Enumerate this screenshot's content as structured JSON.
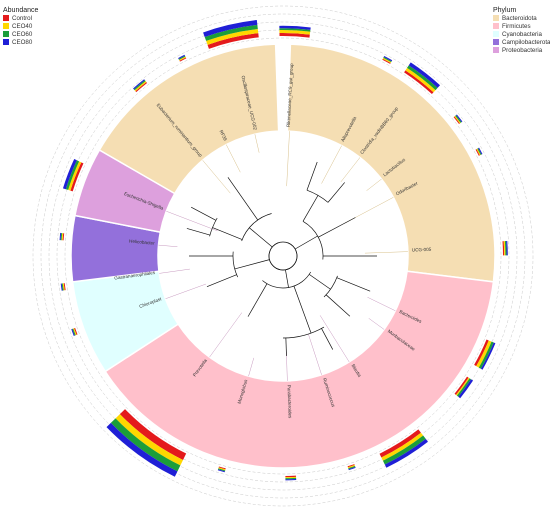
{
  "chart_data": {
    "type": "circular-phylogenetic-tree",
    "abundance_legend": {
      "title": "Abundance",
      "items": [
        {
          "label": "Control",
          "color": "#e41a1c"
        },
        {
          "label": "CEO40",
          "color": "#ffd700"
        },
        {
          "label": "CEO60",
          "color": "#1b9e3a"
        },
        {
          "label": "CEO80",
          "color": "#1f1fd6"
        }
      ]
    },
    "phylum_legend": {
      "title": "Phylum",
      "items": [
        {
          "label": "Bacteroidota",
          "color": "#f5deb3"
        },
        {
          "label": "Firmicutes",
          "color": "#ffc0cb"
        },
        {
          "label": "Cyanobacteria",
          "color": "#e0ffff"
        },
        {
          "label": "Campilobacterota",
          "color": "#9370db"
        },
        {
          "label": "Proteobacteria",
          "color": "#dda0dd"
        }
      ]
    },
    "leaves": [
      {
        "label": "Rikenellaceae_RC9_gut_group",
        "phylum": "Bacteroidota",
        "abundance": [
          0.05,
          0.05,
          0.03,
          0.04
        ]
      },
      {
        "label": "Alloprevotella",
        "phylum": "Bacteroidota",
        "abundance": [
          0.01,
          0.01,
          0.01,
          0.02
        ]
      },
      {
        "label": "Clostridia_vadinBB60_group",
        "phylum": "Bacteroidota",
        "abundance": [
          0.04,
          0.05,
          0.05,
          0.06
        ]
      },
      {
        "label": "Lactobacillus",
        "phylum": "Bacteroidota",
        "abundance": [
          0.01,
          0.01,
          0.02,
          0.01
        ]
      },
      {
        "label": "Odoribacter",
        "phylum": "Bacteroidota",
        "abundance": [
          0.01,
          0.01,
          0.01,
          0.01
        ]
      },
      {
        "label": "UCG-005",
        "phylum": "Bacteroidota",
        "abundance": [
          0.02,
          0.02,
          0.02,
          0.02
        ]
      },
      {
        "label": "Bacteroides",
        "phylum": "Firmicutes",
        "abundance": [
          0.04,
          0.05,
          0.04,
          0.03
        ]
      },
      {
        "label": "Muribaculaceae",
        "phylum": "Firmicutes",
        "abundance": [
          0.03,
          0.02,
          0.03,
          0.04
        ]
      },
      {
        "label": "Blautia",
        "phylum": "Firmicutes",
        "abundance": [
          0.07,
          0.06,
          0.07,
          0.06
        ]
      },
      {
        "label": "Ruminococcus",
        "phylum": "Firmicutes",
        "abundance": [
          0.01,
          0.01,
          0.01,
          0.01
        ]
      },
      {
        "label": "Parabacteroides",
        "phylum": "Firmicutes",
        "abundance": [
          0.02,
          0.01,
          0.02,
          0.01
        ]
      },
      {
        "label": "Monoglobus",
        "phylum": "Firmicutes",
        "abundance": [
          0.01,
          0.01,
          0.01,
          0.01
        ]
      },
      {
        "label": "Prevotella",
        "phylum": "Firmicutes",
        "abundance": [
          0.12,
          0.1,
          0.11,
          0.1
        ]
      },
      {
        "label": "Chloroplast",
        "phylum": "Cyanobacteria",
        "abundance": [
          0.01,
          0.01,
          0.01,
          0.01
        ]
      },
      {
        "label": "Gastranaerophilales",
        "phylum": "Cyanobacteria",
        "abundance": [
          0.01,
          0.01,
          0.01,
          0.01
        ]
      },
      {
        "label": "Helicobacter",
        "phylum": "Campilobacterota",
        "abundance": [
          0.01,
          0.01,
          0.01,
          0.01
        ]
      },
      {
        "label": "Escherichia-Shigella",
        "phylum": "Proteobacteria",
        "abundance": [
          0.04,
          0.04,
          0.04,
          0.05
        ]
      },
      {
        "label": "Eubacterium_ruminantium_group",
        "phylum": "Bacteroidota",
        "abundance": [
          0.02,
          0.02,
          0.02,
          0.02
        ]
      },
      {
        "label": "RF39",
        "phylum": "Bacteroidota",
        "abundance": [
          0.01,
          0.01,
          0.01,
          0.01
        ]
      },
      {
        "label": "Oscillospiraceae_UCG-002",
        "phylum": "Bacteroidota",
        "abundance": [
          0.07,
          0.07,
          0.07,
          0.08
        ]
      }
    ]
  }
}
